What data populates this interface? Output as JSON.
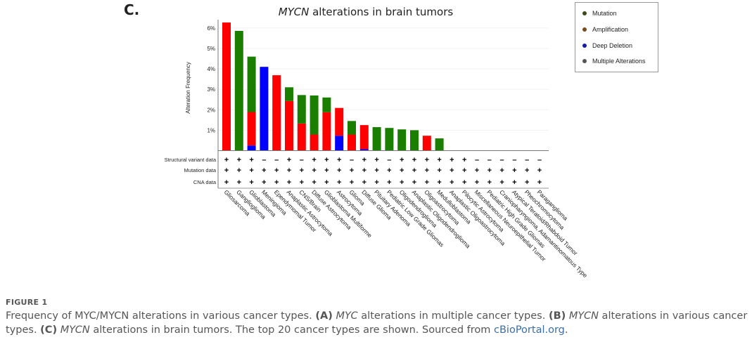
{
  "panel_label": "C.",
  "chart_data": {
    "type": "bar",
    "stacked": true,
    "title_italic": "MYCN",
    "title_rest": " alterations in brain tumors",
    "ylabel": "Alteration Frequency",
    "xlabel": "",
    "ylim": [
      0,
      6.5
    ],
    "yticks": [
      1,
      2,
      3,
      4,
      5,
      6
    ],
    "ytick_labels": [
      "1%",
      "2%",
      "3%",
      "4%",
      "5%",
      "6%"
    ],
    "categories": [
      "Gliosarcoma",
      "Ganglioglioma",
      "Glioblastoma",
      "Meningioma",
      "Ependymomal Tumor",
      "Anaplastic Astrocytoma",
      "CNS/Brain",
      "Diffuse Astrocytoma",
      "Glioblastoma Multiforme",
      "Astrocytoma",
      "Glioma",
      "Diffuse Glioma",
      "Pituitary Adenoma",
      "Pediatric Low Grade Gliomas",
      "Oligodendroglioma",
      "Anaplastic Oligodendroglioma",
      "Oligoastrocytoma",
      "Medulloblastoma",
      "Anaplastic Oligoastrocytoma",
      "Pilocytic Astrocytoma",
      "Miscellaneous Neuroepithelial Tumor",
      "Pediatric High Grade Gliomas",
      "Craniopharyngioma, Adamantinomatous Type",
      "Atypical Teratoid/Rhabdoid Tumor",
      "Pheochromocytoma",
      "Paraganglioma"
    ],
    "series": [
      {
        "name": "Deep Deletion",
        "color": "#0000ff",
        "values": [
          0,
          0,
          0.25,
          4.1,
          0,
          0,
          0,
          0,
          0,
          0.73,
          0,
          0.07,
          0,
          0,
          0,
          0,
          0,
          0,
          0,
          0,
          0,
          0,
          0,
          0,
          0,
          0
        ]
      },
      {
        "name": "Amplification",
        "color": "#ff0000",
        "values": [
          6.27,
          0,
          1.64,
          0,
          3.69,
          2.43,
          1.33,
          0.79,
          1.88,
          1.36,
          0.79,
          1.18,
          0,
          0,
          0,
          0,
          0.73,
          0,
          0,
          0,
          0,
          0,
          0,
          0,
          0,
          0
        ]
      },
      {
        "name": "Mutation",
        "color": "#1a7f00",
        "values": [
          0,
          5.86,
          2.71,
          0,
          0,
          0.67,
          1.39,
          1.91,
          0.72,
          0,
          0.66,
          0,
          1.15,
          1.11,
          1.04,
          1.0,
          0,
          0.6,
          0,
          0,
          0,
          0,
          0,
          0,
          0,
          0
        ]
      },
      {
        "name": "Multiple Alterations",
        "color": "#555555",
        "values": [
          0,
          0,
          0,
          0,
          0,
          0,
          0,
          0,
          0,
          0,
          0,
          0,
          0,
          0,
          0,
          0,
          0,
          0,
          0,
          0,
          0,
          0,
          0,
          0,
          0,
          0
        ]
      }
    ],
    "legend": {
      "position": "top-right",
      "items": [
        {
          "label": "Mutation",
          "color": "#3d4a1c"
        },
        {
          "label": "Amplification",
          "color": "#7a4a1c"
        },
        {
          "label": "Deep Deletion",
          "color": "#1a1aa8"
        },
        {
          "label": "Multiple Alterations",
          "color": "#555555"
        }
      ]
    },
    "profile_rows": [
      {
        "label": "Structural variant data",
        "values": [
          "+",
          "+",
          "+",
          "-",
          "-",
          "+",
          "-",
          "+",
          "+",
          "+",
          "-",
          "+",
          "+",
          "-",
          "+",
          "+",
          "+",
          "+",
          "+",
          "+",
          "-",
          "-",
          "-",
          "-",
          "-",
          "-"
        ]
      },
      {
        "label": "Mutation data",
        "values": [
          "+",
          "+",
          "+",
          "+",
          "+",
          "+",
          "+",
          "+",
          "+",
          "+",
          "+",
          "+",
          "+",
          "+",
          "+",
          "+",
          "+",
          "+",
          "+",
          "+",
          "+",
          "+",
          "+",
          "+",
          "+",
          "+"
        ]
      },
      {
        "label": "CNA data",
        "values": [
          "+",
          "+",
          "+",
          "+",
          "+",
          "+",
          "+",
          "+",
          "+",
          "+",
          "+",
          "+",
          "+",
          "+",
          "+",
          "+",
          "+",
          "+",
          "+",
          "+",
          "+",
          "+",
          "+",
          "+",
          "+",
          "+"
        ]
      }
    ]
  },
  "caption": {
    "figure_label": "FIGURE 1",
    "t1": "Frequency of MYC/MYCN alterations in various cancer types. ",
    "a": "(A)",
    "a_gene": "MYC",
    "a_text": " alterations in multiple cancer types. ",
    "b": "(B)",
    "b_gene": "MYCN",
    "b_text": " alterations in various cancer types. ",
    "c": "(C)",
    "c_gene": "MYCN",
    "c_text": " alterations in brain tumors. The top 20 cancer types are shown. Sourced from ",
    "link": "cBioPortal.org",
    "end": "."
  }
}
